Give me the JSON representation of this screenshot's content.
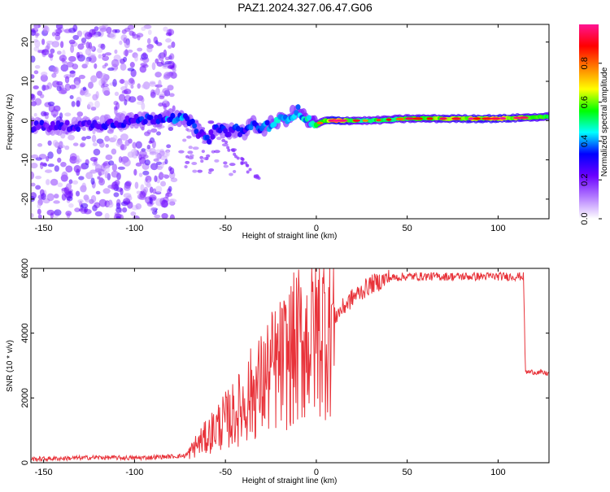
{
  "title": "PAZ1.2024.327.06.47.G06",
  "chart_data": [
    {
      "type": "heatmap",
      "name": "spectrogram",
      "xlabel": "Height of straight line (km)",
      "ylabel": "Frequency (Hz)",
      "xlim": [
        -157,
        128
      ],
      "ylim": [
        -25,
        24.5
      ],
      "xticks": [
        -150,
        -100,
        -50,
        0,
        50,
        100
      ],
      "yticks": [
        -20,
        -10,
        0,
        10,
        20
      ],
      "colorbar": {
        "label": "Normalized spectral amplitude",
        "range": [
          0,
          1
        ],
        "ticks": [
          "0.0",
          "0.2",
          "0.4",
          "0.6",
          "0.8"
        ],
        "colors": [
          "#ffffff",
          "#b47cff",
          "#6a00ff",
          "#0000ff",
          "#00ffff",
          "#00ff00",
          "#ffff00",
          "#ff8000",
          "#ff0000",
          "#ff1493"
        ]
      },
      "ridge": {
        "x": [
          -140,
          -120,
          -100,
          -90,
          -80,
          -70,
          -65,
          -60,
          -55,
          -50,
          -45,
          -40,
          -35,
          -30,
          -25,
          -20,
          -15,
          -10,
          -5,
          0,
          5,
          10,
          20,
          30,
          50,
          70,
          100,
          128
        ],
        "frequency": [
          -1.5,
          -1,
          0,
          0.5,
          1,
          0,
          -3,
          -5,
          -2,
          -3,
          -2,
          -3,
          -1,
          -2,
          -1,
          0,
          1,
          2.5,
          0,
          -1,
          0,
          0,
          0,
          0,
          0.5,
          0.5,
          0.5,
          1
        ],
        "amplitude": [
          0.25,
          0.25,
          0.3,
          0.3,
          0.35,
          0.35,
          0.3,
          0.3,
          0.3,
          0.3,
          0.3,
          0.3,
          0.35,
          0.35,
          0.4,
          0.4,
          0.4,
          0.4,
          0.45,
          0.5,
          0.55,
          0.75,
          0.55,
          0.5,
          0.55,
          0.6,
          0.65,
          0.55
        ]
      }
    },
    {
      "type": "line",
      "name": "snr",
      "xlabel": "Height of straight line (km)",
      "ylabel": "SNR (10 * v/v)",
      "xlim": [
        -157,
        128
      ],
      "ylim": [
        0,
        6000
      ],
      "xticks": [
        -150,
        -100,
        -50,
        0,
        50,
        100
      ],
      "yticks": [
        0,
        2000,
        4000,
        6000
      ],
      "color": "#e8333a",
      "series": [
        {
          "x": [
            -157,
            -140,
            -120,
            -100,
            -80,
            -72,
            -70,
            -65,
            -60,
            -55,
            -50,
            -45,
            -40,
            -35,
            -30,
            -25,
            -20,
            -15,
            -10,
            -5,
            0,
            5,
            10,
            15,
            20,
            25,
            30,
            35,
            40,
            50,
            60,
            70,
            80,
            90,
            100,
            110,
            114,
            115,
            116,
            120,
            128
          ],
          "y": [
            100,
            120,
            150,
            130,
            180,
            200,
            300,
            600,
            800,
            1100,
            1300,
            1500,
            1800,
            2200,
            2400,
            2800,
            3000,
            3300,
            3600,
            3800,
            4100,
            4300,
            4500,
            4800,
            5100,
            5300,
            5500,
            5600,
            5700,
            5750,
            5750,
            5750,
            5750,
            5750,
            5750,
            5750,
            5750,
            2800,
            2800,
            2800,
            2750
          ]
        }
      ]
    }
  ]
}
